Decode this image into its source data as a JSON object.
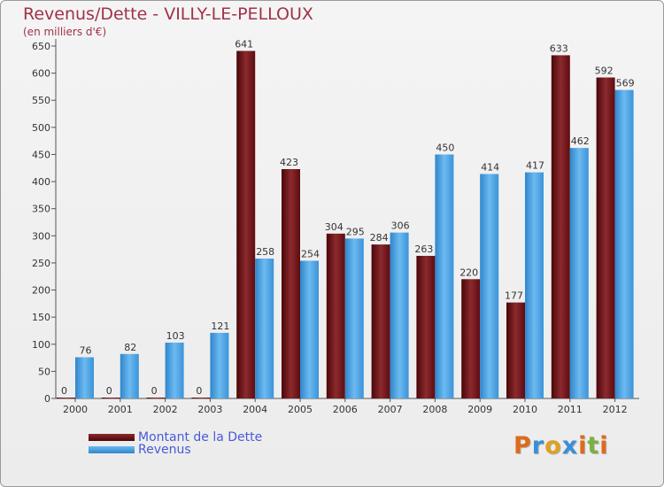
{
  "header": {
    "title": "Revenus/Dette - VILLY-LE-PELLOUX",
    "subtitle": "(en milliers d'€)"
  },
  "legend": {
    "items": [
      {
        "label": "Montant de la Dette",
        "color": "#6b0f14"
      },
      {
        "label": "Revenus",
        "color": "#3d98dd"
      }
    ]
  },
  "logo": {
    "text": "Proxiti",
    "letters": [
      {
        "ch": "P",
        "color": "#e06a1a"
      },
      {
        "ch": "r",
        "color": "#3a8fd6"
      },
      {
        "ch": "o",
        "color": "#e0a020"
      },
      {
        "ch": "x",
        "color": "#3a8fd6"
      },
      {
        "ch": "i",
        "color": "#e06a1a"
      },
      {
        "ch": "t",
        "color": "#7ab040"
      },
      {
        "ch": "i",
        "color": "#e06a1a"
      }
    ]
  },
  "chart_data": {
    "type": "bar",
    "title": "Revenus/Dette - VILLY-LE-PELLOUX",
    "ylabel": "(en milliers d'€)",
    "categories": [
      "2000",
      "2001",
      "2002",
      "2003",
      "2004",
      "2005",
      "2006",
      "2007",
      "2008",
      "2009",
      "2010",
      "2011",
      "2012"
    ],
    "series": [
      {
        "name": "Montant de la Dette",
        "color": "#6b0f14",
        "values": [
          0,
          0,
          0,
          0,
          641,
          423,
          304,
          284,
          263,
          220,
          177,
          633,
          592
        ]
      },
      {
        "name": "Revenus",
        "color": "#3d98dd",
        "values": [
          76,
          82,
          103,
          121,
          258,
          254,
          295,
          306,
          450,
          414,
          417,
          462,
          569
        ]
      }
    ],
    "yticks": [
      0,
      50,
      100,
      150,
      200,
      250,
      300,
      350,
      400,
      450,
      500,
      550,
      600,
      650
    ],
    "ylim": [
      0,
      650
    ],
    "grid": false,
    "legend": "bottom-left"
  }
}
